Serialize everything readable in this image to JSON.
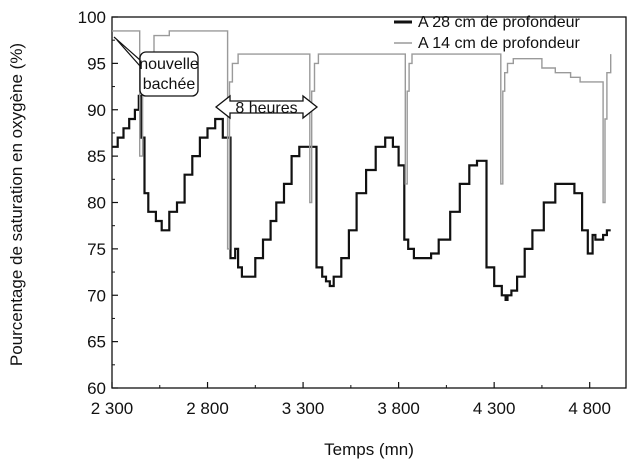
{
  "chart_data": {
    "type": "line",
    "xlabel": "Temps (mn)",
    "ylabel": "Pourcentage de saturation en oxygène (%)",
    "xlim": [
      2300,
      4990
    ],
    "ylim": [
      60,
      100
    ],
    "xticks": [
      2300,
      2800,
      3300,
      3800,
      4300,
      4800
    ],
    "xtick_labels": [
      "2 300",
      "2 800",
      "3 300",
      "3 800",
      "4 300",
      "4 800"
    ],
    "yticks": [
      60,
      65,
      70,
      75,
      80,
      85,
      90,
      95,
      100
    ],
    "ytick_labels": [
      "60",
      "65",
      "70",
      "75",
      "80",
      "85",
      "90",
      "95",
      "100"
    ],
    "grid": false,
    "legend_position": "top-right",
    "series": [
      {
        "name": "A 28  cm  de profondeur",
        "color": "#111111",
        "x": [
          2300,
          2330,
          2360,
          2390,
          2420,
          2440,
          2455,
          2470,
          2490,
          2530,
          2560,
          2600,
          2640,
          2680,
          2720,
          2760,
          2800,
          2840,
          2880,
          2920,
          2945,
          2960,
          2980,
          3010,
          3050,
          3090,
          3130,
          3160,
          3200,
          3240,
          3280,
          3330,
          3370,
          3400,
          3420,
          3440,
          3460,
          3500,
          3540,
          3580,
          3630,
          3680,
          3730,
          3770,
          3800,
          3830,
          3850,
          3880,
          3930,
          3970,
          4010,
          4070,
          4120,
          4170,
          4210,
          4260,
          4300,
          4340,
          4360,
          4370,
          4390,
          4420,
          4460,
          4500,
          4560,
          4620,
          4670,
          4720,
          4760,
          4790,
          4815,
          4830,
          4845,
          4870,
          4890,
          4910
        ],
        "y": [
          86,
          87,
          88,
          89,
          90,
          91.5,
          87,
          81,
          79,
          78,
          77,
          79,
          80,
          83,
          85,
          87,
          88,
          89,
          87,
          74,
          75,
          73,
          72,
          72,
          74,
          76,
          78,
          80,
          82,
          85,
          86,
          86,
          73,
          72,
          71.5,
          71,
          72,
          74,
          77,
          81,
          83.5,
          86,
          87,
          86,
          84,
          76,
          75,
          74,
          74,
          74.5,
          76,
          79,
          82,
          84,
          84.5,
          73,
          71,
          70,
          69.5,
          70,
          70.5,
          72,
          75,
          77,
          80,
          82,
          82,
          81,
          77,
          74.5,
          76.5,
          76,
          76,
          76.5,
          77,
          77
        ]
      },
      {
        "name": "A 14  cm  de profondeur",
        "color": "#9a9a9a",
        "x": [
          2300,
          2380,
          2435,
          2445,
          2460,
          2480,
          2520,
          2600,
          2700,
          2800,
          2890,
          2905,
          2915,
          2930,
          2960,
          3100,
          3300,
          3335,
          3345,
          3360,
          3380,
          3450,
          3600,
          3800,
          3835,
          3845,
          3855,
          3870,
          3900,
          4100,
          4300,
          4335,
          4345,
          4355,
          4370,
          4400,
          4500,
          4550,
          4620,
          4700,
          4750,
          4800,
          4830,
          4850,
          4870,
          4880,
          4890,
          4910
        ],
        "y": [
          98.5,
          98.5,
          98.5,
          85,
          92,
          96,
          98,
          98.5,
          98.5,
          98.5,
          98.5,
          75,
          93,
          95,
          96,
          96,
          96,
          80,
          92,
          95,
          96,
          96,
          96,
          96,
          82,
          92,
          95,
          96,
          96,
          96,
          96,
          82,
          92,
          94,
          95,
          95.5,
          95.5,
          94.5,
          94,
          93.5,
          93,
          93,
          93,
          93,
          80,
          89,
          94,
          96
        ]
      }
    ],
    "annotations": [
      {
        "text_lines": [
          "nouvelle",
          "bachée"
        ]
      },
      {
        "text": "8  heures"
      }
    ]
  }
}
